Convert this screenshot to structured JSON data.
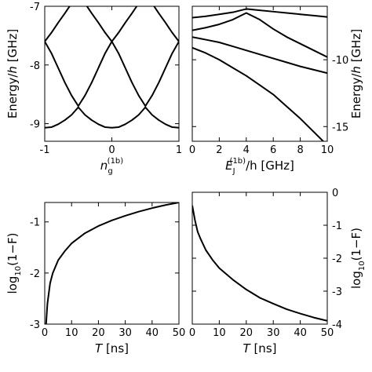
{
  "chart_data": [
    {
      "type": "line",
      "x": [
        -1,
        -0.9,
        -0.8,
        -0.7,
        -0.6,
        -0.5,
        -0.4,
        -0.3,
        -0.2,
        -0.1,
        0,
        0.1,
        0.2,
        0.3,
        0.4,
        0.5,
        0.6,
        0.7,
        0.8,
        0.9,
        1
      ],
      "series": [
        {
          "color": "#000000",
          "values": [
            -9.07,
            -9.06,
            -9.01,
            -8.94,
            -8.85,
            -8.72,
            -8.85,
            -8.94,
            -9.01,
            -9.06,
            -9.07,
            -9.06,
            -9.01,
            -8.94,
            -8.85,
            -8.72,
            -8.85,
            -8.94,
            -9.01,
            -9.06,
            -9.07
          ]
        },
        {
          "color": "#000000",
          "values": [
            -7.6,
            -7.8,
            -8.05,
            -8.3,
            -8.52,
            -8.7,
            -8.52,
            -8.3,
            -8.05,
            -7.8,
            -7.6,
            -7.8,
            -8.05,
            -8.3,
            -8.52,
            -8.7,
            -8.52,
            -8.3,
            -8.05,
            -7.8,
            -7.6
          ]
        },
        {
          "color": "#000000",
          "values": [
            -7.6,
            -7.45,
            -7.28,
            -7.12,
            -6.95,
            -6.8,
            -6.95,
            -7.12,
            -7.28,
            -7.45,
            -7.6,
            -7.45,
            -7.28,
            -7.12,
            -6.95,
            -6.8,
            -6.95,
            -7.12,
            -7.28,
            -7.45,
            -7.6
          ]
        }
      ],
      "xlabel": [
        "n",
        "g",
        "(1b)"
      ],
      "ylabel": [
        "Energy/",
        "h",
        " [GHz]"
      ],
      "xlim": [
        -1,
        1
      ],
      "ylim": [
        -9.3,
        -7
      ],
      "xticks": [
        -1,
        0,
        1
      ],
      "yticks": [
        -7,
        -8,
        -9
      ],
      "y_axis_side": "left"
    },
    {
      "type": "line",
      "x": [
        0,
        1,
        2,
        3,
        4,
        5,
        6,
        7,
        8,
        9,
        10
      ],
      "series": [
        {
          "color": "#000000",
          "values": [
            -6.85,
            -6.75,
            -6.6,
            -6.45,
            -6.2,
            -6.3,
            -6.4,
            -6.5,
            -6.6,
            -6.7,
            -6.8
          ]
        },
        {
          "color": "#000000",
          "values": [
            -7.8,
            -7.6,
            -7.35,
            -7.0,
            -6.5,
            -7.0,
            -7.7,
            -8.3,
            -8.8,
            -9.3,
            -9.8
          ]
        },
        {
          "color": "#000000",
          "values": [
            -8.3,
            -8.5,
            -8.7,
            -9.0,
            -9.3,
            -9.6,
            -9.9,
            -10.2,
            -10.5,
            -10.75,
            -11.0
          ]
        },
        {
          "color": "#000000",
          "values": [
            -9.1,
            -9.5,
            -10.0,
            -10.6,
            -11.2,
            -11.9,
            -12.6,
            -13.5,
            -14.4,
            -15.4,
            -16.4
          ]
        }
      ],
      "xlabel": [
        "E",
        "J",
        "(1b)",
        "/h [GHz]"
      ],
      "ylabel": [
        "Energy/",
        "h",
        " [GHz]"
      ],
      "xlim": [
        0,
        10
      ],
      "ylim": [
        -16.1,
        -6
      ],
      "xticks": [
        0,
        2,
        4,
        6,
        8,
        10
      ],
      "yticks": [
        -10,
        -15
      ],
      "y_axis_side": "right"
    },
    {
      "type": "line",
      "x": [
        0.5,
        1,
        2,
        3,
        5,
        7.5,
        10,
        15,
        20,
        25,
        30,
        35,
        40,
        45,
        50
      ],
      "series": [
        {
          "color": "#000000",
          "values": [
            -3,
            -2.6,
            -2.2,
            -2.0,
            -1.75,
            -1.57,
            -1.42,
            -1.22,
            -1.08,
            -0.97,
            -0.88,
            -0.8,
            -0.73,
            -0.67,
            -0.62
          ]
        }
      ],
      "xlabel": [
        "T",
        " [ns]"
      ],
      "ylabel": [
        "log",
        "10",
        "(1−F)"
      ],
      "xlim": [
        0,
        50
      ],
      "ylim": [
        -3,
        -0.62
      ],
      "xticks": [
        0,
        10,
        20,
        30,
        40,
        50
      ],
      "yticks": [
        -1,
        -2,
        -3
      ],
      "y_axis_side": "left"
    },
    {
      "type": "line",
      "x": [
        0,
        1,
        2,
        3,
        5,
        7.5,
        10,
        15,
        20,
        25,
        30,
        35,
        40,
        45,
        50
      ],
      "series": [
        {
          "color": "#000000",
          "values": [
            -0.4,
            -0.85,
            -1.2,
            -1.4,
            -1.75,
            -2.05,
            -2.3,
            -2.65,
            -2.95,
            -3.2,
            -3.38,
            -3.55,
            -3.68,
            -3.8,
            -3.9
          ]
        }
      ],
      "xlabel": [
        "T",
        " [ns]"
      ],
      "ylabel": [
        "log",
        "10",
        "(1−F)"
      ],
      "xlim": [
        0,
        50
      ],
      "ylim": [
        -4,
        0
      ],
      "xticks": [
        0,
        10,
        20,
        30,
        40,
        50
      ],
      "yticks": [
        0,
        -1,
        -2,
        -3,
        -4
      ],
      "y_axis_side": "right"
    }
  ]
}
